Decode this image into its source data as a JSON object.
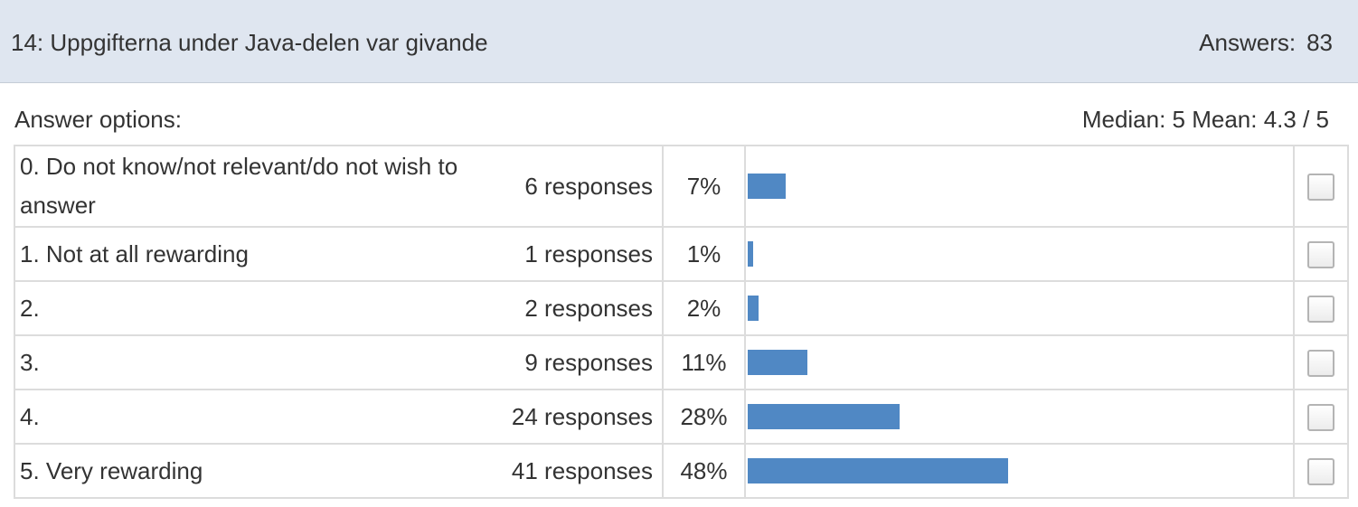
{
  "question": {
    "title": "14:  Uppgifterna under Java-delen var givande",
    "answers_label": "Answers:",
    "answers_count": "83"
  },
  "summary": {
    "options_label": "Answer options:",
    "stats": "Median: 5 Mean: 4.3 / 5"
  },
  "options": [
    {
      "label": "0.  Do not know/not relevant/do not wish to answer",
      "count": "6 responses",
      "percent": "7%",
      "share": 0.07
    },
    {
      "label": "1.  Not at all rewarding",
      "count": "1 responses",
      "percent": "1%",
      "share": 0.01
    },
    {
      "label": "2.",
      "count": "2 responses",
      "percent": "2%",
      "share": 0.02
    },
    {
      "label": "3.",
      "count": "9 responses",
      "percent": "11%",
      "share": 0.11
    },
    {
      "label": "4.",
      "count": "24 responses",
      "percent": "28%",
      "share": 0.28
    },
    {
      "label": "5.  Very rewarding",
      "count": "41 responses",
      "percent": "48%",
      "share": 0.48
    }
  ],
  "colors": {
    "bar": "#5088c4",
    "header_bg": "#dfe6f0"
  }
}
